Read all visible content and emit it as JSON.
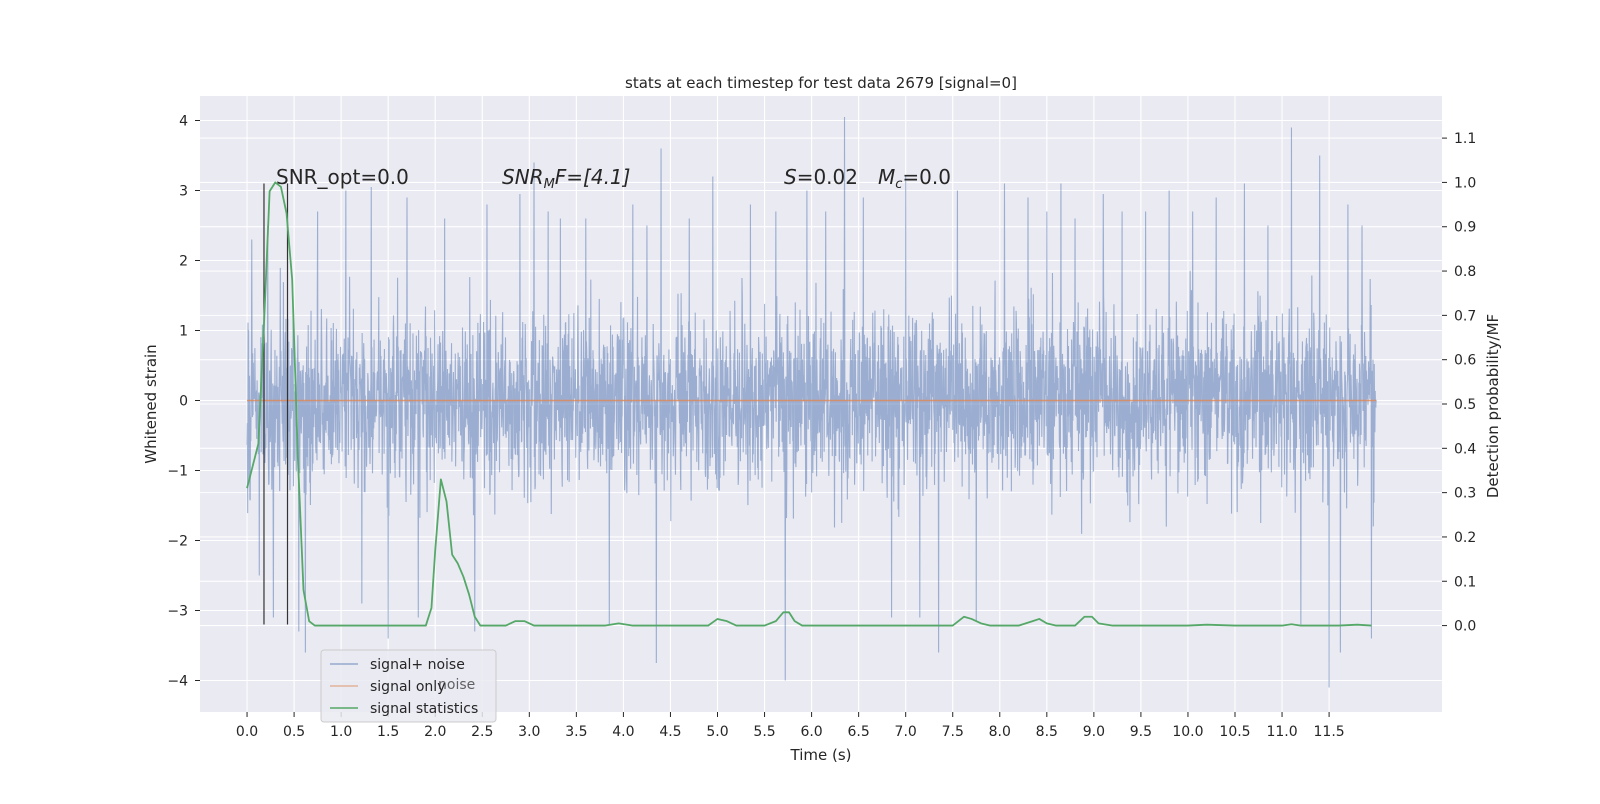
{
  "chart_data": {
    "type": "line",
    "title": "stats at each timestep for test data 2679 [signal=0]",
    "xlabel": "Time (s)",
    "ylabel": "Whitened strain",
    "y2label": "Detection probability/MF",
    "xlim": [
      -0.5,
      12.7
    ],
    "ylim": [
      -4.45,
      4.35
    ],
    "y2lim": [
      -0.195,
      1.195
    ],
    "xticks": [
      0.0,
      0.5,
      1.0,
      1.5,
      2.0,
      2.5,
      3.0,
      3.5,
      4.0,
      4.5,
      5.0,
      5.5,
      6.0,
      6.5,
      7.0,
      7.5,
      8.0,
      8.5,
      9.0,
      9.5,
      10.0,
      10.5,
      11.0,
      11.5
    ],
    "xtick_labels": [
      "0.0",
      "0.5",
      "1.0",
      "1.5",
      "2.0",
      "2.5",
      "3.0",
      "3.5",
      "4.0",
      "4.5",
      "5.0",
      "5.5",
      "6.0",
      "6.5",
      "7.0",
      "7.5",
      "8.0",
      "8.5",
      "9.0",
      "9.5",
      "10.0",
      "10.5",
      "11.0",
      "11.5"
    ],
    "yticks": [
      -4,
      -3,
      -2,
      -1,
      0,
      1,
      2,
      3,
      4
    ],
    "ytick_labels": [
      "−4",
      "−3",
      "−2",
      "−1",
      "0",
      "1",
      "2",
      "3",
      "4"
    ],
    "y2ticks": [
      0.0,
      0.1,
      0.2,
      0.3,
      0.4,
      0.5,
      0.6,
      0.7,
      0.8,
      0.9,
      1.0,
      1.1
    ],
    "y2tick_labels": [
      "0.0",
      "0.1",
      "0.2",
      "0.3",
      "0.4",
      "0.5",
      "0.6",
      "0.7",
      "0.8",
      "0.9",
      "1.0",
      "1.1"
    ],
    "grid": true,
    "legend": {
      "placement": "lower-left",
      "entries": [
        {
          "label": "signal+ noise",
          "color": "#4c72b0"
        },
        {
          "label": "signal only",
          "color": "#dd8452"
        },
        {
          "label": "signal statistics",
          "color": "#55a868"
        }
      ],
      "ghost_text": "noise"
    },
    "annotations": {
      "snr_opt": "SNR_opt=0.0",
      "snr_mf_base": "SNR",
      "snr_mf_sub": "M",
      "snr_mf_rest": "F=[4.1]",
      "s_sym": "S",
      "s_val": "=0.02",
      "mc_sym": "M",
      "mc_sub": "c",
      "mc_val": "=0.0"
    },
    "vertical_markers_x": [
      0.18,
      0.43
    ],
    "series": [
      {
        "name": "signal+ noise",
        "axis": "left",
        "color": "#4c72b0",
        "t_range": [
          0.0,
          12.0
        ],
        "envelope_typical": 1.9,
        "spikes": [
          {
            "x": 0.05,
            "y": 2.3
          },
          {
            "x": 0.13,
            "y": -2.5
          },
          {
            "x": 0.22,
            "y": 2.5
          },
          {
            "x": 0.28,
            "y": -3.1
          },
          {
            "x": 0.55,
            "y": -3.3
          },
          {
            "x": 0.62,
            "y": -3.6
          },
          {
            "x": 0.75,
            "y": 2.7
          },
          {
            "x": 1.05,
            "y": 3.0
          },
          {
            "x": 1.22,
            "y": -2.9
          },
          {
            "x": 1.32,
            "y": 3.05
          },
          {
            "x": 1.5,
            "y": -3.4
          },
          {
            "x": 1.7,
            "y": 2.9
          },
          {
            "x": 1.82,
            "y": -3.1
          },
          {
            "x": 2.1,
            "y": 2.6
          },
          {
            "x": 2.42,
            "y": -3.3
          },
          {
            "x": 2.55,
            "y": 2.8
          },
          {
            "x": 2.9,
            "y": 2.95
          },
          {
            "x": 3.05,
            "y": 3.4
          },
          {
            "x": 3.2,
            "y": 2.7
          },
          {
            "x": 3.33,
            "y": 2.6
          },
          {
            "x": 3.6,
            "y": 2.6
          },
          {
            "x": 3.85,
            "y": -3.2
          },
          {
            "x": 4.1,
            "y": 2.8
          },
          {
            "x": 4.25,
            "y": 2.5
          },
          {
            "x": 4.35,
            "y": -3.75
          },
          {
            "x": 4.4,
            "y": 3.6
          },
          {
            "x": 4.7,
            "y": 2.6
          },
          {
            "x": 4.95,
            "y": 3.2
          },
          {
            "x": 5.35,
            "y": 2.8
          },
          {
            "x": 5.62,
            "y": 2.7
          },
          {
            "x": 5.72,
            "y": -4.0
          },
          {
            "x": 5.95,
            "y": 3.0
          },
          {
            "x": 6.15,
            "y": 2.7
          },
          {
            "x": 6.35,
            "y": 4.05
          },
          {
            "x": 6.55,
            "y": 2.9
          },
          {
            "x": 6.85,
            "y": -3.1
          },
          {
            "x": 7.0,
            "y": 3.2
          },
          {
            "x": 7.15,
            "y": -3.1
          },
          {
            "x": 7.35,
            "y": -3.6
          },
          {
            "x": 7.55,
            "y": 3.0
          },
          {
            "x": 7.75,
            "y": -3.15
          },
          {
            "x": 8.05,
            "y": 3.1
          },
          {
            "x": 8.3,
            "y": 2.9
          },
          {
            "x": 8.5,
            "y": 2.7
          },
          {
            "x": 8.65,
            "y": 3.1
          },
          {
            "x": 8.8,
            "y": 2.6
          },
          {
            "x": 9.1,
            "y": 2.95
          },
          {
            "x": 9.3,
            "y": 2.7
          },
          {
            "x": 9.55,
            "y": 2.7
          },
          {
            "x": 9.8,
            "y": 3.0
          },
          {
            "x": 10.05,
            "y": 2.7
          },
          {
            "x": 10.3,
            "y": 2.9
          },
          {
            "x": 10.6,
            "y": 3.1
          },
          {
            "x": 10.85,
            "y": 2.5
          },
          {
            "x": 11.1,
            "y": 3.9
          },
          {
            "x": 11.2,
            "y": -3.2
          },
          {
            "x": 11.4,
            "y": 3.5
          },
          {
            "x": 11.5,
            "y": -4.1
          },
          {
            "x": 11.62,
            "y": -3.6
          },
          {
            "x": 11.7,
            "y": 2.8
          },
          {
            "x": 11.85,
            "y": 2.5
          },
          {
            "x": 11.95,
            "y": -3.4
          }
        ]
      },
      {
        "name": "signal only",
        "axis": "left",
        "color": "#dd8452",
        "x": [
          0.0,
          12.0
        ],
        "y": [
          0.0,
          0.0
        ]
      },
      {
        "name": "signal statistics",
        "axis": "right",
        "color": "#55a868",
        "x": [
          0.0,
          0.06,
          0.12,
          0.18,
          0.24,
          0.3,
          0.36,
          0.42,
          0.48,
          0.54,
          0.6,
          0.66,
          0.72,
          0.85,
          1.0,
          1.2,
          1.4,
          1.6,
          1.8,
          1.9,
          1.96,
          2.0,
          2.06,
          2.12,
          2.18,
          2.24,
          2.3,
          2.36,
          2.42,
          2.48,
          2.55,
          2.65,
          2.75,
          2.85,
          2.95,
          3.05,
          3.2,
          3.5,
          3.8,
          3.95,
          4.1,
          4.5,
          4.9,
          5.0,
          5.1,
          5.2,
          5.5,
          5.62,
          5.7,
          5.76,
          5.82,
          5.9,
          6.2,
          6.6,
          7.0,
          7.3,
          7.5,
          7.62,
          7.7,
          7.8,
          7.9,
          8.2,
          8.35,
          8.42,
          8.5,
          8.6,
          8.8,
          8.9,
          8.98,
          9.05,
          9.2,
          9.5,
          10.0,
          10.2,
          10.5,
          11.0,
          11.1,
          11.2,
          11.6,
          11.8,
          11.95
        ],
        "y": [
          0.31,
          0.36,
          0.41,
          0.68,
          0.98,
          1.0,
          0.99,
          0.93,
          0.78,
          0.38,
          0.08,
          0.01,
          0.0,
          0.0,
          0.0,
          0.0,
          0.0,
          0.0,
          0.0,
          0.0,
          0.04,
          0.17,
          0.33,
          0.28,
          0.16,
          0.14,
          0.11,
          0.07,
          0.02,
          0.0,
          0.0,
          0.0,
          0.0,
          0.01,
          0.01,
          0.0,
          0.0,
          0.0,
          0.0,
          0.005,
          0.0,
          0.0,
          0.0,
          0.015,
          0.01,
          0.0,
          0.0,
          0.01,
          0.03,
          0.03,
          0.01,
          0.0,
          0.0,
          0.0,
          0.0,
          0.0,
          0.0,
          0.02,
          0.015,
          0.005,
          0.0,
          0.0,
          0.01,
          0.015,
          0.005,
          0.0,
          0.0,
          0.02,
          0.02,
          0.005,
          0.0,
          0.0,
          0.0,
          0.002,
          0.0,
          0.0,
          0.003,
          0.0,
          0.0,
          0.002,
          0.0
        ]
      }
    ]
  }
}
